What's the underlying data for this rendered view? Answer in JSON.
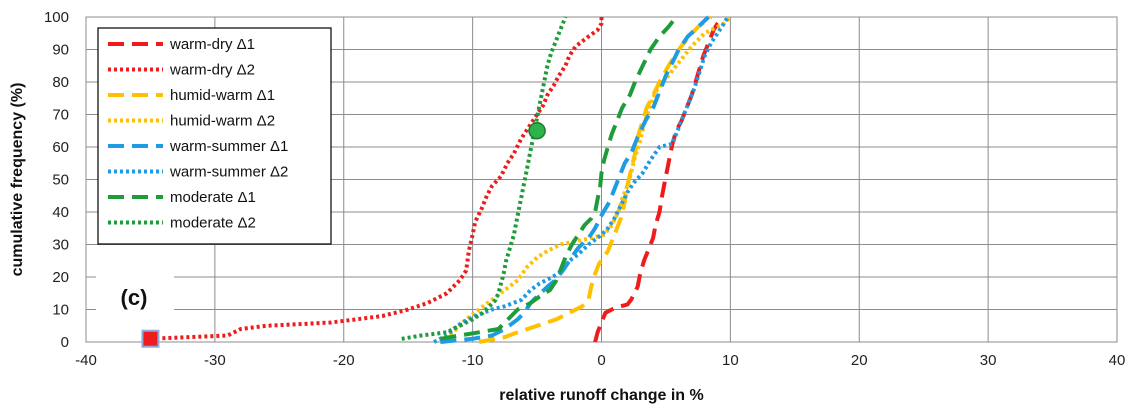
{
  "chart_data": {
    "type": "line",
    "title": "",
    "panel_label": "(c)",
    "xlabel": "relative runoff change in %",
    "ylabel": "cumulative frequency (%)",
    "xlim": [
      -40,
      40
    ],
    "ylim": [
      0,
      100
    ],
    "xticks": [
      -40,
      -30,
      -20,
      -10,
      0,
      10,
      20,
      30,
      40
    ],
    "yticks": [
      0,
      10,
      20,
      30,
      40,
      50,
      60,
      70,
      80,
      90,
      100
    ],
    "grid": true,
    "legend_position": "top-left",
    "series": [
      {
        "name": "warm-dry Δ1",
        "color": "#ee1c1c",
        "style": "dashed",
        "points": [
          [
            -0.5,
            0
          ],
          [
            -0.3,
            3
          ],
          [
            0,
            6
          ],
          [
            0.3,
            9
          ],
          [
            0.8,
            10
          ],
          [
            1.5,
            11
          ],
          [
            2,
            11.5
          ],
          [
            2.3,
            13
          ],
          [
            2.8,
            17
          ],
          [
            3,
            21
          ],
          [
            3.3,
            25
          ],
          [
            3.6,
            28
          ],
          [
            3.8,
            30
          ],
          [
            4,
            32
          ],
          [
            4.2,
            36
          ],
          [
            4.5,
            40
          ],
          [
            4.7,
            45
          ],
          [
            4.9,
            49
          ],
          [
            5.2,
            55
          ],
          [
            5.5,
            61
          ],
          [
            5.8,
            65
          ],
          [
            6.2,
            68
          ],
          [
            6.6,
            72
          ],
          [
            7,
            76
          ],
          [
            7.3,
            80
          ],
          [
            7.6,
            84
          ],
          [
            7.9,
            88
          ],
          [
            8.3,
            92
          ],
          [
            8.7,
            96
          ],
          [
            9,
            98
          ],
          [
            9.4,
            100
          ]
        ]
      },
      {
        "name": "warm-dry Δ2",
        "color": "#ee1c1c",
        "style": "dotted",
        "points": [
          [
            -35,
            1
          ],
          [
            -32,
            1.5
          ],
          [
            -29,
            2
          ],
          [
            -28,
            4
          ],
          [
            -26,
            5
          ],
          [
            -21,
            6
          ],
          [
            -19,
            7
          ],
          [
            -17,
            8
          ],
          [
            -15,
            10
          ],
          [
            -13.5,
            12
          ],
          [
            -12,
            15
          ],
          [
            -11,
            19
          ],
          [
            -10.5,
            22
          ],
          [
            -10.3,
            28
          ],
          [
            -10,
            33
          ],
          [
            -9.8,
            37
          ],
          [
            -9.3,
            41
          ],
          [
            -8.9,
            45
          ],
          [
            -8.5,
            48
          ],
          [
            -7.8,
            51
          ],
          [
            -7.3,
            55
          ],
          [
            -6.8,
            58
          ],
          [
            -6.3,
            62
          ],
          [
            -6,
            64
          ],
          [
            -5.5,
            67
          ],
          [
            -5,
            70
          ],
          [
            -4.5,
            73
          ],
          [
            -4.2,
            76
          ],
          [
            -3.7,
            79
          ],
          [
            -3.3,
            82
          ],
          [
            -2.8,
            85
          ],
          [
            -2.5,
            88
          ],
          [
            -2,
            91
          ],
          [
            -1,
            94
          ],
          [
            -0.3,
            96
          ],
          [
            0,
            98
          ],
          [
            0,
            100
          ]
        ]
      },
      {
        "name": "humid-warm Δ1",
        "color": "#ffc000",
        "style": "dashed",
        "points": [
          [
            -9.5,
            0
          ],
          [
            -7.5,
            1.5
          ],
          [
            -6.5,
            3
          ],
          [
            -5,
            5
          ],
          [
            -3.5,
            7
          ],
          [
            -2.5,
            9
          ],
          [
            -1.5,
            11
          ],
          [
            -1,
            13
          ],
          [
            -0.8,
            17
          ],
          [
            -0.5,
            21
          ],
          [
            -0.2,
            24
          ],
          [
            0.5,
            28
          ],
          [
            1,
            33
          ],
          [
            1.5,
            38
          ],
          [
            1.8,
            43
          ],
          [
            2,
            48
          ],
          [
            2.3,
            53
          ],
          [
            2.6,
            58
          ],
          [
            2.8,
            63
          ],
          [
            3.2,
            68
          ],
          [
            3.5,
            72
          ],
          [
            4,
            76
          ],
          [
            4.5,
            80
          ],
          [
            5.2,
            85
          ],
          [
            6,
            90
          ],
          [
            6.8,
            94
          ],
          [
            7.5,
            97
          ],
          [
            8.5,
            100
          ]
        ]
      },
      {
        "name": "humid-warm Δ2",
        "color": "#ffc000",
        "style": "dotted",
        "points": [
          [
            -12.5,
            0
          ],
          [
            -11.5,
            3
          ],
          [
            -10.5,
            7
          ],
          [
            -9.5,
            10
          ],
          [
            -8.5,
            13
          ],
          [
            -7.5,
            16
          ],
          [
            -6.5,
            19
          ],
          [
            -5.8,
            23
          ],
          [
            -5,
            26
          ],
          [
            -4.2,
            28
          ],
          [
            -3.2,
            30
          ],
          [
            -2,
            31
          ],
          [
            -0.8,
            32
          ],
          [
            0.2,
            33
          ],
          [
            0.8,
            36
          ],
          [
            1.3,
            40
          ],
          [
            1.6,
            44
          ],
          [
            2,
            48
          ],
          [
            2.3,
            52
          ],
          [
            2.6,
            57
          ],
          [
            3,
            62
          ],
          [
            3.3,
            67
          ],
          [
            3.7,
            72
          ],
          [
            4.2,
            77
          ],
          [
            5,
            81
          ],
          [
            6,
            86
          ],
          [
            7,
            91
          ],
          [
            8,
            95
          ],
          [
            9.5,
            98
          ],
          [
            10,
            100
          ]
        ]
      },
      {
        "name": "warm-summer Δ1",
        "color": "#1e9be3",
        "style": "dashed",
        "points": [
          [
            -12.5,
            0
          ],
          [
            -10,
            1
          ],
          [
            -8.5,
            2
          ],
          [
            -7.5,
            4
          ],
          [
            -6.5,
            7
          ],
          [
            -6,
            9
          ],
          [
            -5.5,
            12
          ],
          [
            -5,
            14
          ],
          [
            -4.2,
            17
          ],
          [
            -3.6,
            19
          ],
          [
            -3,
            22
          ],
          [
            -2.5,
            25
          ],
          [
            -1.8,
            29
          ],
          [
            -1,
            32
          ],
          [
            -0.5,
            35
          ],
          [
            0,
            39
          ],
          [
            0.6,
            43
          ],
          [
            1,
            47
          ],
          [
            1.4,
            51
          ],
          [
            1.8,
            55
          ],
          [
            2.3,
            58
          ],
          [
            2.8,
            63
          ],
          [
            3.4,
            68
          ],
          [
            4,
            72
          ],
          [
            4.5,
            77
          ],
          [
            5,
            82
          ],
          [
            5.5,
            86
          ],
          [
            6,
            90
          ],
          [
            6.7,
            94
          ],
          [
            7.5,
            97
          ],
          [
            8.3,
            100
          ]
        ]
      },
      {
        "name": "warm-summer Δ2",
        "color": "#1e9be3",
        "style": "dotted",
        "points": [
          [
            -13,
            0
          ],
          [
            -12,
            2
          ],
          [
            -11.5,
            4
          ],
          [
            -10.8,
            6
          ],
          [
            -9.8,
            8
          ],
          [
            -8.5,
            10
          ],
          [
            -7.5,
            11
          ],
          [
            -6.2,
            13
          ],
          [
            -5.5,
            16
          ],
          [
            -4.8,
            18
          ],
          [
            -3.8,
            20
          ],
          [
            -3,
            22
          ],
          [
            -2.5,
            25
          ],
          [
            -1.8,
            27
          ],
          [
            -1,
            30
          ],
          [
            0,
            33
          ],
          [
            0.5,
            35
          ],
          [
            1,
            38
          ],
          [
            1.5,
            42
          ],
          [
            2,
            46
          ],
          [
            2.5,
            49
          ],
          [
            3.2,
            52
          ],
          [
            3.8,
            56
          ],
          [
            4.5,
            60
          ],
          [
            5.5,
            61
          ],
          [
            5.8,
            64
          ],
          [
            6.2,
            68
          ],
          [
            6.7,
            73
          ],
          [
            7.2,
            78
          ],
          [
            7.6,
            83
          ],
          [
            8,
            88
          ],
          [
            8.5,
            92
          ],
          [
            9,
            95
          ],
          [
            9.5,
            98
          ],
          [
            9.8,
            100
          ]
        ]
      },
      {
        "name": "moderate Δ1",
        "color": "#1e9c3a",
        "style": "dashed",
        "points": [
          [
            -12.5,
            1
          ],
          [
            -11,
            2
          ],
          [
            -9.5,
            3
          ],
          [
            -8,
            4
          ],
          [
            -7.5,
            6
          ],
          [
            -7,
            8
          ],
          [
            -6.5,
            10
          ],
          [
            -5.5,
            12
          ],
          [
            -4.8,
            14
          ],
          [
            -4,
            16
          ],
          [
            -3.5,
            19
          ],
          [
            -3.2,
            22
          ],
          [
            -2.8,
            26
          ],
          [
            -2.3,
            30
          ],
          [
            -1.8,
            33
          ],
          [
            -1.3,
            36
          ],
          [
            -0.8,
            38
          ],
          [
            -0.5,
            40
          ],
          [
            -0.3,
            44
          ],
          [
            -0.1,
            48
          ],
          [
            0,
            52
          ],
          [
            0.2,
            56
          ],
          [
            0.5,
            60
          ],
          [
            0.8,
            64
          ],
          [
            1.2,
            68
          ],
          [
            1.6,
            72
          ],
          [
            2.2,
            76
          ],
          [
            2.6,
            80
          ],
          [
            3.2,
            85
          ],
          [
            3.8,
            90
          ],
          [
            4.5,
            94
          ],
          [
            5.2,
            97
          ],
          [
            5.8,
            100
          ]
        ]
      },
      {
        "name": "moderate Δ2",
        "color": "#1e9c3a",
        "style": "dotted",
        "points": [
          [
            -15.5,
            1
          ],
          [
            -14,
            2
          ],
          [
            -12,
            3
          ],
          [
            -11,
            5
          ],
          [
            -10,
            7
          ],
          [
            -9.2,
            9
          ],
          [
            -8.7,
            11
          ],
          [
            -8.2,
            13
          ],
          [
            -8,
            15
          ],
          [
            -7.8,
            18
          ],
          [
            -7.6,
            21
          ],
          [
            -7.4,
            25
          ],
          [
            -7.1,
            29
          ],
          [
            -6.8,
            33
          ],
          [
            -6.6,
            37
          ],
          [
            -6.4,
            41
          ],
          [
            -6.2,
            45
          ],
          [
            -6,
            49
          ],
          [
            -5.8,
            53
          ],
          [
            -5.6,
            57
          ],
          [
            -5.4,
            61
          ],
          [
            -5.2,
            65
          ],
          [
            -5,
            69
          ],
          [
            -4.8,
            73
          ],
          [
            -4.6,
            77
          ],
          [
            -4.4,
            81
          ],
          [
            -4.2,
            85
          ],
          [
            -3.9,
            89
          ],
          [
            -3.5,
            93
          ],
          [
            -3.1,
            97
          ],
          [
            -2.8,
            100
          ]
        ]
      }
    ],
    "markers": [
      {
        "type": "square",
        "color": "#ee1c1c",
        "x": -35,
        "y": 1
      },
      {
        "type": "circle",
        "color": "#2db34a",
        "x": -5,
        "y": 65
      }
    ]
  }
}
